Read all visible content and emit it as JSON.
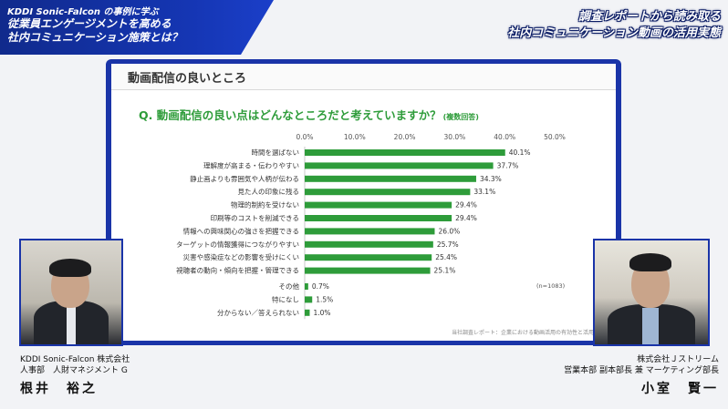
{
  "banner": {
    "subtitle": "KDDI Sonic-Falcon の事例に学ぶ",
    "title_line1": "従業員エンゲージメントを高める",
    "title_line2": "社内コミュニケーション施策とは？"
  },
  "headline": {
    "line1": "調査レポートから読み取る",
    "line2": "社内コミュニケーション動画の活用実態"
  },
  "slide": {
    "section_title": "動画配信の良いところ",
    "question": "Q. 動画配信の良い点はどんなところだと考えていますか？",
    "question_note": "(複数回答)",
    "sample_size": "(n=1083)",
    "source": "当社調査レポート：企業における動画活用の有効性と活用意向調"
  },
  "chart_data": {
    "type": "bar",
    "orientation": "horizontal",
    "bar_color": "#2e9c3a",
    "xlim": [
      0,
      50
    ],
    "x_ticks": [
      "0.0%",
      "10.0%",
      "20.0%",
      "30.0%",
      "40.0%",
      "50.0%"
    ],
    "categories": [
      "時間を選ばない",
      "理解度が高まる・伝わりやすい",
      "静止画よりも雰囲気や人柄が伝わる",
      "見た人の印象に残る",
      "物理的制約を受けない",
      "印刷等のコストを削減できる",
      "情報への興味関心の強さを把握できる",
      "ターゲットの情報獲得につながりやすい",
      "災害や感染症などの影響を受けにくい",
      "視聴者の動向・傾向を把握・管理できる",
      "その他",
      "特になし",
      "分からない／答えられない"
    ],
    "values": [
      40.1,
      37.7,
      34.3,
      33.1,
      29.4,
      29.4,
      26.0,
      25.7,
      25.4,
      25.1,
      0.7,
      1.5,
      1.0
    ],
    "labels": [
      "40.1%",
      "37.7%",
      "34.3%",
      "33.1%",
      "29.4%",
      "29.4%",
      "26.0%",
      "25.7%",
      "25.4%",
      "25.1%",
      "0.7%",
      "1.5%",
      "1.0%"
    ]
  },
  "speakers": {
    "left": {
      "company": "KDDI Sonic-Falcon 株式会社",
      "role": "人事部　人財マネジメント G",
      "name": "根井　裕之"
    },
    "right": {
      "company": "株式会社Ｊストリーム",
      "role": "営業本部 副本部長 兼 マーケティング部長",
      "name": "小室　賢一"
    }
  }
}
